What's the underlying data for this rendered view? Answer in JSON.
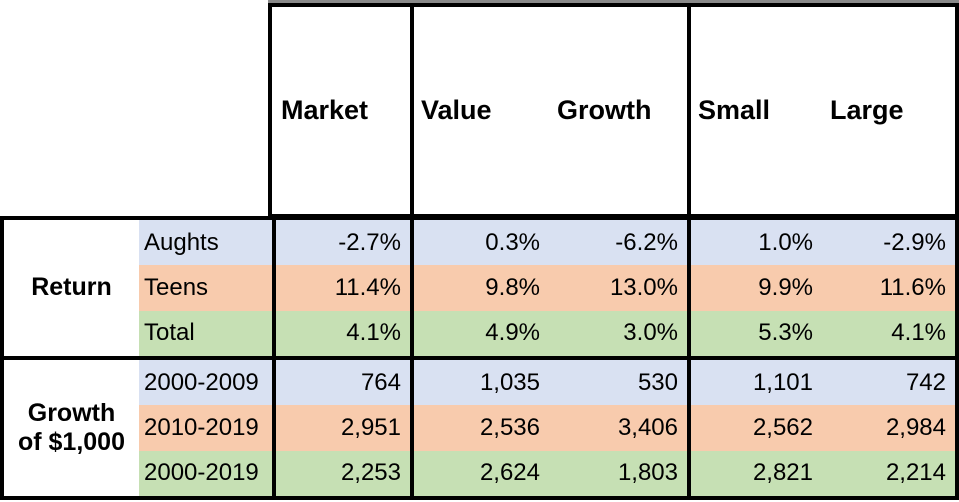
{
  "chart_data": {
    "type": "table",
    "title": "",
    "column_headers": [
      "Market",
      "Value",
      "Growth",
      "Small",
      "Large"
    ],
    "header_groups": [
      {
        "columns": [
          "Market"
        ]
      },
      {
        "columns": [
          "Value",
          "Growth"
        ]
      },
      {
        "columns": [
          "Small",
          "Large"
        ]
      }
    ],
    "sections": [
      {
        "label": "Return",
        "rows": [
          {
            "label": "Aughts",
            "values": [
              "-2.7%",
              "0.3%",
              "-6.2%",
              "1.0%",
              "-2.9%"
            ]
          },
          {
            "label": "Teens",
            "values": [
              "11.4%",
              "9.8%",
              "13.0%",
              "9.9%",
              "11.6%"
            ]
          },
          {
            "label": "Total",
            "values": [
              "4.1%",
              "4.9%",
              "3.0%",
              "5.3%",
              "4.1%"
            ]
          }
        ]
      },
      {
        "label": "Growth of $1,000",
        "rows": [
          {
            "label": "2000-2009",
            "values": [
              "764",
              "1,035",
              "530",
              "1,101",
              "742"
            ]
          },
          {
            "label": "2010-2019",
            "values": [
              "2,951",
              "2,536",
              "3,406",
              "2,562",
              "2,984"
            ]
          },
          {
            "label": "2000-2019",
            "values": [
              "2,253",
              "2,624",
              "1,803",
              "2,821",
              "2,214"
            ]
          }
        ]
      }
    ],
    "row_band_colors": [
      "#D9E1F2",
      "#F8CBAD",
      "#C6E0B4"
    ],
    "layout": {
      "grid": "off",
      "legend": "none",
      "value_alignment": "right"
    }
  },
  "table": {
    "section_labels": {
      "return_line1": "Return",
      "return_line2": "",
      "growth_line1": "Growth",
      "growth_line2": "of $1,000"
    },
    "colors": {
      "band_lavender": "#D9E1F2",
      "band_peach": "#F8CBAD",
      "band_green": "#C6E0B4",
      "border": "#000000",
      "background": "#FFFFFF"
    }
  }
}
